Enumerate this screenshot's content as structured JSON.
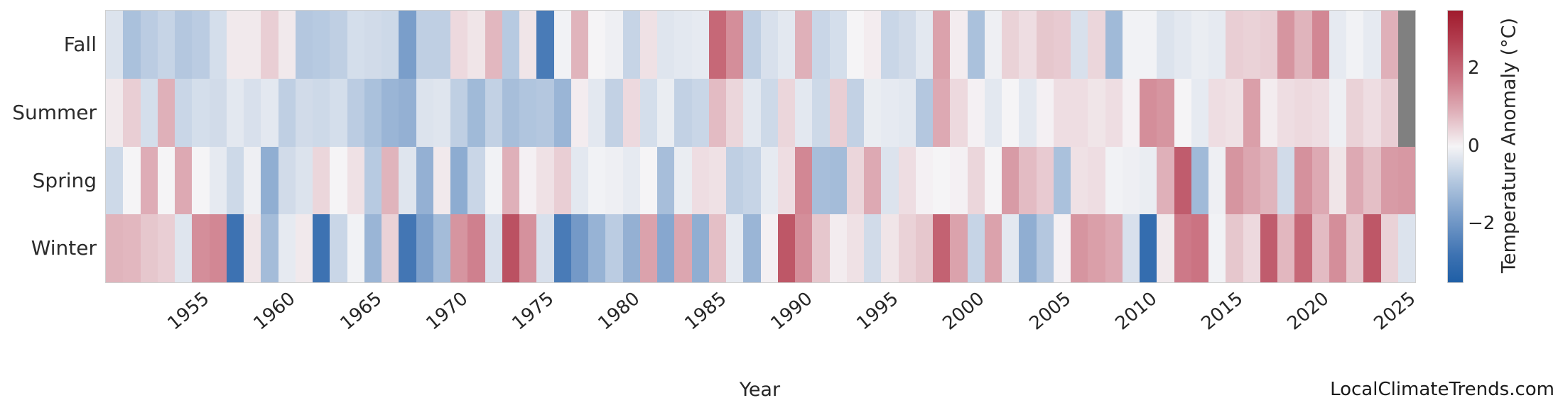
{
  "watermark": "LocalClimateTrends.com",
  "chart_data": {
    "type": "heatmap",
    "title": "",
    "xlabel": "Year",
    "ylabel": "",
    "rows": [
      "Fall",
      "Summer",
      "Spring",
      "Winter"
    ],
    "years": [
      1950,
      1951,
      1952,
      1953,
      1954,
      1955,
      1956,
      1957,
      1958,
      1959,
      1960,
      1961,
      1962,
      1963,
      1964,
      1965,
      1966,
      1967,
      1968,
      1969,
      1970,
      1971,
      1972,
      1973,
      1974,
      1975,
      1976,
      1977,
      1978,
      1979,
      1980,
      1981,
      1982,
      1983,
      1984,
      1985,
      1986,
      1987,
      1988,
      1989,
      1990,
      1991,
      1992,
      1993,
      1994,
      1995,
      1996,
      1997,
      1998,
      1999,
      2000,
      2001,
      2002,
      2003,
      2004,
      2005,
      2006,
      2007,
      2008,
      2009,
      2010,
      2011,
      2012,
      2013,
      2014,
      2015,
      2016,
      2017,
      2018,
      2019,
      2020,
      2021,
      2022,
      2023,
      2024,
      2025
    ],
    "x_ticks": [
      1955,
      1960,
      1965,
      1970,
      1975,
      1980,
      1985,
      1990,
      1995,
      2000,
      2005,
      2010,
      2015,
      2020,
      2025
    ],
    "series": [
      {
        "name": "Fall",
        "values": [
          -0.35,
          -1.05,
          -0.8,
          -0.65,
          -0.9,
          -0.8,
          -0.45,
          0.15,
          0.15,
          0.5,
          0.15,
          -0.9,
          -0.85,
          -0.75,
          -0.45,
          -0.5,
          -0.55,
          -1.8,
          -0.75,
          -0.75,
          0.35,
          0.2,
          0.8,
          -0.85,
          0.2,
          -2.6,
          -0.05,
          0.85,
          0,
          -0.1,
          -0.65,
          0.25,
          -0.3,
          -0.25,
          -0.2,
          2.0,
          1.4,
          -0.75,
          -0.4,
          -0.25,
          0.9,
          -0.6,
          -0.45,
          0,
          0.1,
          -0.6,
          -0.5,
          -0.25,
          1.1,
          0.1,
          -1.05,
          -0.1,
          0.45,
          0.3,
          0.6,
          0.55,
          -0.4,
          0.4,
          -1.2,
          -0.05,
          -0.05,
          -0.35,
          -0.25,
          -0.15,
          -0.2,
          0.5,
          0.45,
          0.5,
          1.3,
          0.85,
          1.5,
          -0.2,
          -0.05,
          -0.2,
          0.9,
          null
        ]
      },
      {
        "name": "Summer",
        "values": [
          0.15,
          0.5,
          -0.45,
          0.9,
          -0.6,
          -0.45,
          -0.5,
          -0.25,
          -0.4,
          -0.25,
          -0.75,
          -0.5,
          -0.55,
          -0.45,
          -0.8,
          -1.05,
          -1.3,
          -1.4,
          -0.35,
          -0.3,
          -0.75,
          -1.2,
          -0.7,
          -1.1,
          -0.95,
          -0.9,
          -1.3,
          0.1,
          -0.25,
          -0.7,
          0.35,
          -0.45,
          -0.15,
          -0.7,
          -0.6,
          0.75,
          0.4,
          -0.25,
          -0.55,
          0.4,
          -0.25,
          -0.55,
          0.5,
          -0.7,
          -0.15,
          -0.2,
          -0.25,
          -0.9,
          1.0,
          0.35,
          0.05,
          -0.25,
          0,
          -0.25,
          0.05,
          0.3,
          0.3,
          0.2,
          0.3,
          0.05,
          1.4,
          1.3,
          0,
          -0.2,
          0.3,
          0.25,
          1.15,
          0.1,
          0.3,
          0.35,
          0.3,
          -0.1,
          0.45,
          0.3,
          0.5,
          null
        ]
      },
      {
        "name": "Spring",
        "values": [
          -0.55,
          0,
          0.95,
          0,
          1.0,
          0,
          -0.2,
          -0.55,
          -0.1,
          -1.45,
          -0.5,
          -0.35,
          0.4,
          0,
          0.25,
          -0.85,
          0.85,
          -0.3,
          -1.4,
          0.15,
          -1.5,
          -0.6,
          -0.05,
          0.9,
          0.05,
          0.25,
          0.5,
          -0.25,
          -0.05,
          -0.1,
          -0.2,
          0,
          -1.1,
          -0.15,
          0.3,
          0.25,
          -0.75,
          -0.65,
          -0.2,
          0.3,
          1.5,
          -1.1,
          -1.15,
          0.4,
          1.0,
          -0.35,
          0.3,
          0.05,
          0,
          0.05,
          0.4,
          0,
          1.2,
          0.75,
          0.55,
          -1.05,
          0.25,
          0.3,
          -0.05,
          -0.1,
          -0.15,
          0.9,
          2.2,
          -1.2,
          -0.1,
          1.3,
          1.05,
          0.85,
          -0.5,
          1.35,
          1.0,
          0.2,
          1.0,
          0.7,
          1.2,
          1.25
        ]
      },
      {
        "name": "Winter",
        "values": [
          0.85,
          0.8,
          0.6,
          0.5,
          -0.3,
          1.4,
          1.5,
          -2.8,
          0.2,
          -1.15,
          -0.2,
          0.15,
          -2.8,
          -0.6,
          -0.05,
          -1.3,
          0.45,
          -2.7,
          -1.75,
          -1.15,
          1.3,
          1.6,
          -0.4,
          2.4,
          1.35,
          -0.4,
          -2.6,
          -1.9,
          -1.35,
          -0.8,
          -1.4,
          1.1,
          -1.6,
          1.05,
          -1.45,
          0.7,
          -0.2,
          -1.3,
          0.05,
          2.3,
          1.4,
          0.6,
          0.1,
          0.25,
          -0.5,
          0.2,
          0.45,
          0.6,
          2.1,
          1.1,
          -0.65,
          1.1,
          -0.25,
          -1.45,
          -0.9,
          0.05,
          1.3,
          1.15,
          1.0,
          -0.4,
          -3.0,
          0.15,
          1.7,
          1.8,
          -0.05,
          0.6,
          0.35,
          2.2,
          0.8,
          2.0,
          0.75,
          1.4,
          0.6,
          2.3,
          0.45,
          -0.35
        ]
      }
    ],
    "colorbar": {
      "label": "Temperature Anomaly (°C)",
      "tick_labels": [
        "2",
        "0",
        "−2"
      ],
      "tick_values": [
        2,
        0,
        -2
      ],
      "vmin": -3.5,
      "vmax": 3.5
    },
    "colors": {
      "missing": "#808080",
      "background": "#ffffff",
      "border": "#cfcfcf",
      "colormap_stops": [
        [
          0.0,
          "#1f5fa6"
        ],
        [
          0.1,
          "#3d72b2"
        ],
        [
          0.25,
          "#7da0cb"
        ],
        [
          0.37,
          "#b3c7df"
        ],
        [
          0.5,
          "#f5f4f6"
        ],
        [
          0.63,
          "#dfafb8"
        ],
        [
          0.75,
          "#cc7685"
        ],
        [
          0.9,
          "#b13a4c"
        ],
        [
          1.0,
          "#a01b2d"
        ]
      ]
    },
    "legend_position": "right-colorbar",
    "grid": false
  }
}
